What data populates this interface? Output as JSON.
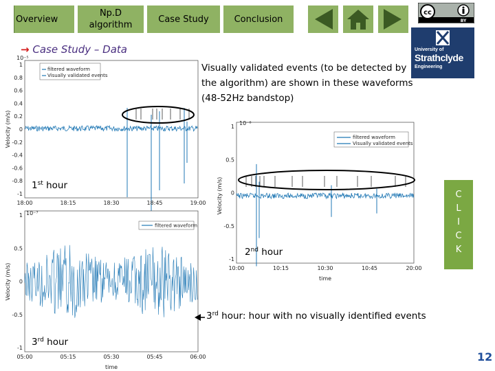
{
  "nav": {
    "overview": "Overview",
    "npd": "Np.D algorithm",
    "case_study": "Case Study",
    "conclusion": "Conclusion"
  },
  "icons": {
    "prev": "left-triangle-icon",
    "home": "home-icon",
    "next": "right-triangle-icon"
  },
  "logos": {
    "cc": "CC BY",
    "university": {
      "line1": "University of",
      "line2": "Strathclyde",
      "line3": "Engineering"
    }
  },
  "heading": {
    "arrow": "→",
    "text": "Case Study – Data"
  },
  "description": "Visually validated events (to be detected by the algorithm) are shown in these waveforms (48-52Hz bandstop)",
  "captions": {
    "hour1": {
      "num": "1",
      "sup": "st",
      "rest": " hour"
    },
    "hour2": {
      "num": "2",
      "sup": "nd",
      "rest": " hour"
    },
    "hour3": {
      "num": "3",
      "sup": "rd",
      "rest": " hour"
    },
    "hour3_note": {
      "num": "3",
      "sup": "rd",
      "rest": " hour: hour with no visually identified events"
    }
  },
  "click_button": [
    "C",
    "L",
    "I",
    "C",
    "K"
  ],
  "page_number": "12",
  "colors": {
    "nav": "#8fb263",
    "signal": "#1f77b4",
    "heading": "#4a2f80",
    "arrow": "#d41e1e",
    "click": "#7ba843",
    "page_number": "#1f4e9b"
  },
  "chart_data": [
    {
      "type": "line",
      "title": "1st hour",
      "exponent": "10⁻⁵",
      "ylabel": "Velocity (m/s)",
      "xlabel": "",
      "x_ticks": [
        "18:00",
        "18:15",
        "18:30",
        "18:45",
        "19:00"
      ],
      "y_ticks": [
        "1",
        "0.8",
        "0.6",
        "0.4",
        "0.2",
        "0",
        "-0.2",
        "-0.4",
        "-0.6",
        "-0.8",
        "-1"
      ],
      "ylim": [
        -1,
        1
      ],
      "legend": [
        "filtered waveform",
        "Visually validated events"
      ],
      "legend_position": "top-left"
    },
    {
      "type": "line",
      "title": "2nd hour",
      "exponent": "10⁻⁶",
      "ylabel": "Velocity (m/s)",
      "xlabel": "time",
      "x_ticks": [
        "10:00",
        "10:15",
        "10:30",
        "10:45",
        "20:00"
      ],
      "y_ticks": [
        "1",
        "0.5",
        "0",
        "-0.5",
        "-1"
      ],
      "ylim": [
        -1,
        1
      ],
      "legend": [
        "filtered waveform",
        "Visually validated events"
      ],
      "legend_position": "top-right"
    },
    {
      "type": "line",
      "title": "3rd hour",
      "exponent": "10⁻⁷",
      "ylabel": "Velocity (m/s)",
      "xlabel": "time",
      "x_ticks": [
        "05:00",
        "05:15",
        "05:30",
        "05:45",
        "06:00"
      ],
      "y_ticks": [
        "1",
        "0.5",
        "0",
        "-0.5",
        "-1"
      ],
      "ylim": [
        -1,
        1
      ],
      "legend": [
        "filtered waveform"
      ],
      "legend_position": "top-right"
    }
  ]
}
